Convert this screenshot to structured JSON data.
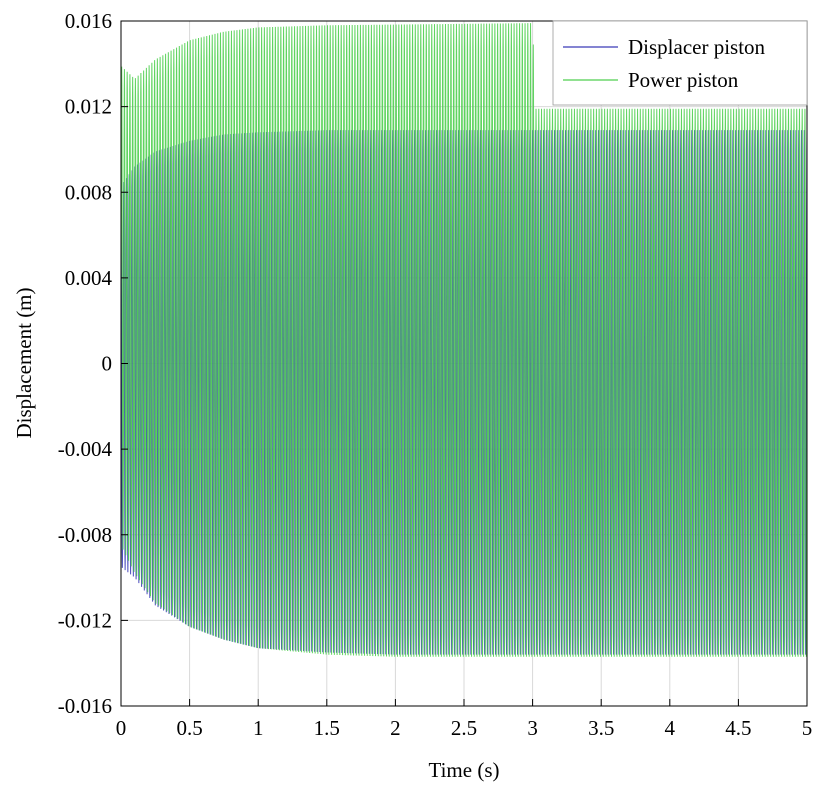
{
  "chart_data": {
    "type": "line",
    "xlabel": "Time (s)",
    "ylabel": "Displacement (m)",
    "xlim": [
      0,
      5
    ],
    "ylim": [
      -0.016,
      0.016
    ],
    "x_ticks": [
      0,
      0.5,
      1,
      1.5,
      2,
      2.5,
      3,
      3.5,
      4,
      4.5,
      5
    ],
    "x_tick_labels": [
      "0",
      "0.5",
      "1",
      "1.5",
      "2",
      "2.5",
      "3",
      "3.5",
      "4",
      "4.5",
      "5"
    ],
    "y_ticks": [
      -0.016,
      -0.012,
      -0.008,
      -0.004,
      0,
      0.004,
      0.008,
      0.012,
      0.016
    ],
    "y_tick_labels": [
      "-0.016",
      "-0.012",
      "-0.008",
      "-0.004",
      "0",
      "0.004",
      "0.008",
      "0.012",
      "0.016"
    ],
    "grid": true,
    "legend_position": "top-right",
    "oscillation_frequency_hz": 50,
    "series": [
      {
        "name": "Displacer piston",
        "color": "#3b3bb8",
        "envelope_max": [
          [
            0,
            0.0083
          ],
          [
            0.1,
            0.0092
          ],
          [
            0.25,
            0.0099
          ],
          [
            0.5,
            0.0104
          ],
          [
            0.75,
            0.0107
          ],
          [
            1.0,
            0.0108
          ],
          [
            1.5,
            0.0109
          ],
          [
            2.0,
            0.0109
          ],
          [
            5.0,
            0.0109
          ]
        ],
        "envelope_min": [
          [
            0,
            -0.0095
          ],
          [
            0.1,
            -0.01
          ],
          [
            0.25,
            -0.0113
          ],
          [
            0.5,
            -0.0123
          ],
          [
            0.75,
            -0.0129
          ],
          [
            1.0,
            -0.0133
          ],
          [
            1.5,
            -0.0135
          ],
          [
            2.0,
            -0.0136
          ],
          [
            5.0,
            -0.0136
          ]
        ],
        "phase_deg": 90
      },
      {
        "name": "Power piston",
        "color": "#4fcf4f",
        "envelope_max": [
          [
            0,
            0.0139
          ],
          [
            0.1,
            0.0133
          ],
          [
            0.25,
            0.0142
          ],
          [
            0.5,
            0.0151
          ],
          [
            0.75,
            0.0155
          ],
          [
            1.0,
            0.0157
          ],
          [
            1.5,
            0.0158
          ],
          [
            3.0,
            0.0159
          ],
          [
            3.02,
            0.0119
          ],
          [
            5.0,
            0.0119
          ]
        ],
        "envelope_min": [
          [
            0,
            -0.0085
          ],
          [
            0.1,
            -0.0098
          ],
          [
            0.25,
            -0.0112
          ],
          [
            0.5,
            -0.0123
          ],
          [
            0.75,
            -0.0129
          ],
          [
            1.0,
            -0.0133
          ],
          [
            1.5,
            -0.0136
          ],
          [
            2.0,
            -0.0137
          ],
          [
            5.0,
            -0.0137
          ]
        ],
        "phase_deg": 0
      }
    ]
  }
}
